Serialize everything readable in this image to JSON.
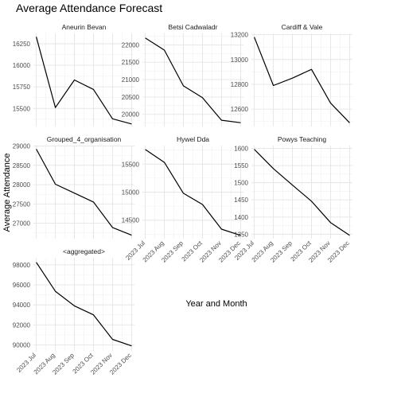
{
  "chart_data": {
    "type": "line",
    "title": "Average Attendance Forecast",
    "xlabel": "Year and Month",
    "ylabel": "Average Attendance",
    "x": [
      "2023 Jul",
      "2023 Aug",
      "2023 Sep",
      "2023 Oct",
      "2023 Nov",
      "2023 Dec"
    ],
    "line_color": "#000000",
    "grid": true,
    "facets": [
      {
        "name": "Aneurin Bevan",
        "values": [
          16330,
          15510,
          15830,
          15720,
          15380,
          15320
        ],
        "ylim": [
          15290,
          16370
        ],
        "yticks": [
          15500,
          15750,
          16000,
          16250
        ],
        "ytick_labels": [
          "15500",
          "15750",
          "16000",
          "16250"
        ]
      },
      {
        "name": "Betsi Cadwaladr",
        "values": [
          22200,
          21850,
          20820,
          20480,
          19830,
          19760
        ],
        "ylim": [
          19650,
          22330
        ],
        "yticks": [
          20000,
          20500,
          21000,
          21500,
          22000
        ],
        "ytick_labels": [
          "20000",
          "20500",
          "21000",
          "21500",
          "22000"
        ]
      },
      {
        "name": "Cardiff & Vale",
        "values": [
          13180,
          12790,
          12850,
          12920,
          12650,
          12490
        ],
        "ylim": [
          12460,
          13210
        ],
        "yticks": [
          12600,
          12800,
          13000,
          13200
        ],
        "ytick_labels": [
          "12600",
          "12800",
          "13000",
          "13200"
        ]
      },
      {
        "name": "Grouped_4_organisation",
        "values": [
          28920,
          28010,
          27780,
          27550,
          26890,
          26690
        ],
        "ylim": [
          26600,
          29010
        ],
        "yticks": [
          27000,
          27500,
          28000,
          28500,
          29000
        ],
        "ytick_labels": [
          "27000",
          "27500",
          "28000",
          "28500",
          "29000"
        ]
      },
      {
        "name": "Hywel Dda",
        "values": [
          15760,
          15530,
          14980,
          14780,
          14340,
          14230
        ],
        "ylim": [
          14170,
          15830
        ],
        "yticks": [
          14500,
          15000,
          15500
        ],
        "ytick_labels": [
          "14500",
          "15000",
          "15500"
        ]
      },
      {
        "name": "Powys Teaching",
        "values": [
          1597,
          1541,
          1493,
          1446,
          1384,
          1347
        ],
        "ylim": [
          1337,
          1608
        ],
        "yticks": [
          1350,
          1400,
          1450,
          1500,
          1550,
          1600
        ],
        "ytick_labels": [
          "1350",
          "1400",
          "1450",
          "1500",
          "1550",
          "1600"
        ]
      },
      {
        "name": "<aggregated>",
        "values": [
          98250,
          95350,
          93900,
          93000,
          90550,
          89900
        ],
        "ylim": [
          89400,
          98700
        ],
        "yticks": [
          90000,
          92000,
          94000,
          96000,
          98000
        ],
        "ytick_labels": [
          "90000",
          "92000",
          "94000",
          "96000",
          "98000"
        ]
      }
    ]
  }
}
